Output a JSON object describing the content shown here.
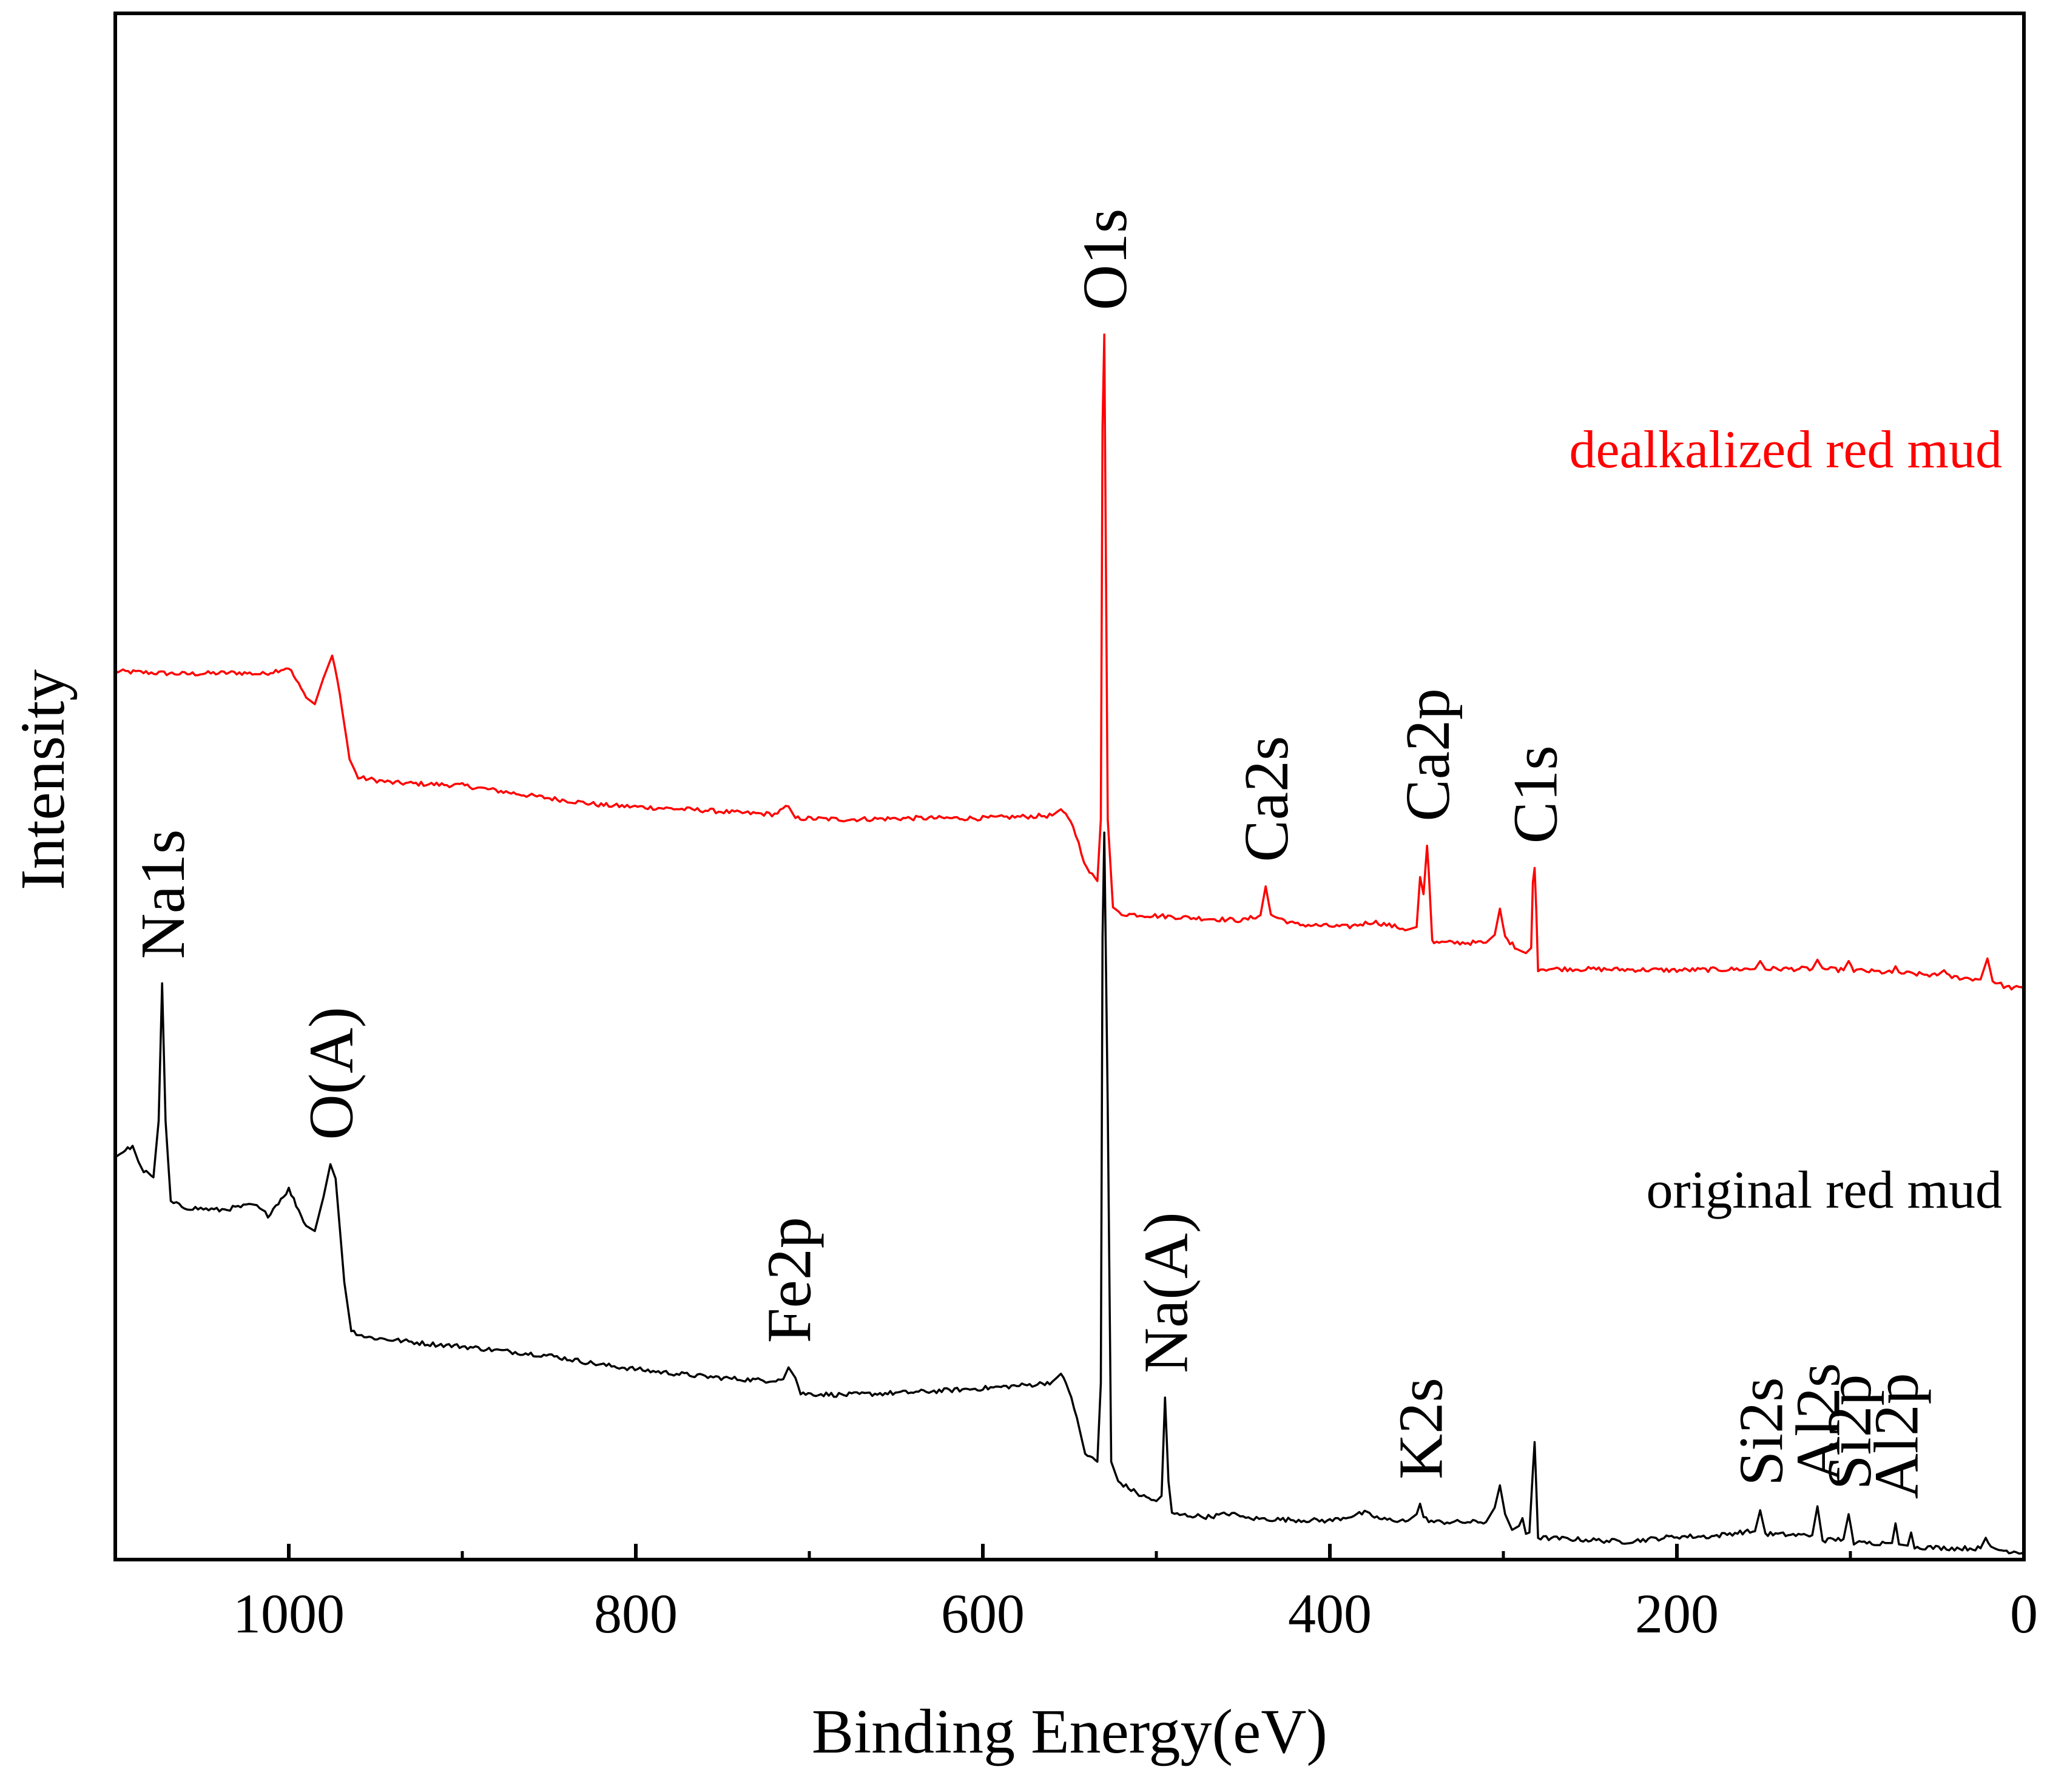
{
  "chart_data": {
    "type": "line",
    "title": "",
    "xlabel": "Binding Energy(eV)",
    "ylabel": "Intensity",
    "xlim": [
      1100,
      0
    ],
    "ylim": [
      0,
      1
    ],
    "x_ticks": [
      1000,
      800,
      600,
      400,
      200,
      0
    ],
    "x_tick_labels": [
      "1000",
      "800",
      "600",
      "400",
      "200",
      "0"
    ],
    "y_ticks_shown": false,
    "grid": false,
    "series": [
      {
        "name": "dealkalized red mud",
        "color": "#ff0000",
        "label_placement": "upper-right",
        "points": [
          [
            1100,
            0.673
          ],
          [
            1060,
            0.671
          ],
          [
            1030,
            0.672
          ],
          [
            1015,
            0.671
          ],
          [
            1000,
            0.676
          ],
          [
            990,
            0.653
          ],
          [
            985,
            0.648
          ],
          [
            980,
            0.668
          ],
          [
            975,
            0.685
          ],
          [
            972,
            0.668
          ],
          [
            965,
            0.606
          ],
          [
            960,
            0.592
          ],
          [
            940,
            0.588
          ],
          [
            900,
            0.586
          ],
          [
            860,
            0.578
          ],
          [
            820,
            0.571
          ],
          [
            790,
            0.569
          ],
          [
            760,
            0.567
          ],
          [
            740,
            0.565
          ],
          [
            720,
            0.564
          ],
          [
            712,
            0.57
          ],
          [
            708,
            0.561
          ],
          [
            680,
            0.56
          ],
          [
            640,
            0.561
          ],
          [
            600,
            0.561
          ],
          [
            580,
            0.562
          ],
          [
            560,
            0.563
          ],
          [
            555,
            0.568
          ],
          [
            548,
            0.555
          ],
          [
            540,
            0.522
          ],
          [
            534,
            0.513
          ],
          [
            532,
            0.56
          ],
          [
            531,
            0.86
          ],
          [
            530,
            0.93
          ],
          [
            528,
            0.56
          ],
          [
            525,
            0.493
          ],
          [
            520,
            0.488
          ],
          [
            480,
            0.485
          ],
          [
            450,
            0.483
          ],
          [
            440,
            0.487
          ],
          [
            437,
            0.509
          ],
          [
            434,
            0.487
          ],
          [
            420,
            0.48
          ],
          [
            390,
            0.478
          ],
          [
            375,
            0.482
          ],
          [
            355,
            0.476
          ],
          [
            350,
            0.478
          ],
          [
            348,
            0.516
          ],
          [
            346,
            0.503
          ],
          [
            344,
            0.54
          ],
          [
            343,
            0.52
          ],
          [
            341,
            0.468
          ],
          [
            340,
            0.466
          ],
          [
            310,
            0.466
          ],
          [
            305,
            0.472
          ],
          [
            302,
            0.492
          ],
          [
            299,
            0.47
          ],
          [
            292,
            0.461
          ],
          [
            287,
            0.458
          ],
          [
            284,
            0.462
          ],
          [
            283,
            0.512
          ],
          [
            282,
            0.523
          ],
          [
            281,
            0.49
          ],
          [
            280,
            0.446
          ],
          [
            260,
            0.446
          ],
          [
            200,
            0.445
          ],
          [
            155,
            0.446
          ],
          [
            152,
            0.452
          ],
          [
            149,
            0.446
          ],
          [
            122,
            0.446
          ],
          [
            119,
            0.453
          ],
          [
            116,
            0.446
          ],
          [
            104,
            0.445
          ],
          [
            101,
            0.452
          ],
          [
            98,
            0.445
          ],
          [
            76,
            0.443
          ],
          [
            74,
            0.448
          ],
          [
            72,
            0.443
          ],
          [
            50,
            0.441
          ],
          [
            46,
            0.445
          ],
          [
            43,
            0.44
          ],
          [
            25,
            0.438
          ],
          [
            21,
            0.454
          ],
          [
            18,
            0.437
          ],
          [
            10,
            0.432
          ],
          [
            0,
            0.431
          ]
        ]
      },
      {
        "name": "original red mud",
        "color": "#000000",
        "label_placement": "middle-right",
        "points": [
          [
            1100,
            0.303
          ],
          [
            1090,
            0.311
          ],
          [
            1085,
            0.293
          ],
          [
            1078,
            0.287
          ],
          [
            1075,
            0.33
          ],
          [
            1073,
            0.435
          ],
          [
            1071,
            0.33
          ],
          [
            1068,
            0.268
          ],
          [
            1060,
            0.264
          ],
          [
            1040,
            0.262
          ],
          [
            1020,
            0.266
          ],
          [
            1012,
            0.258
          ],
          [
            1000,
            0.278
          ],
          [
            990,
            0.25
          ],
          [
            985,
            0.246
          ],
          [
            980,
            0.272
          ],
          [
            976,
            0.297
          ],
          [
            973,
            0.286
          ],
          [
            968,
            0.207
          ],
          [
            964,
            0.17
          ],
          [
            955,
            0.165
          ],
          [
            940,
            0.163
          ],
          [
            920,
            0.16
          ],
          [
            900,
            0.158
          ],
          [
            880,
            0.155
          ],
          [
            850,
            0.151
          ],
          [
            820,
            0.144
          ],
          [
            790,
            0.139
          ],
          [
            760,
            0.135
          ],
          [
            740,
            0.133
          ],
          [
            725,
            0.132
          ],
          [
            715,
            0.133
          ],
          [
            712,
            0.142
          ],
          [
            708,
            0.134
          ],
          [
            705,
            0.122
          ],
          [
            680,
            0.121
          ],
          [
            640,
            0.123
          ],
          [
            600,
            0.126
          ],
          [
            570,
            0.129
          ],
          [
            560,
            0.131
          ],
          [
            555,
            0.137
          ],
          [
            549,
            0.12
          ],
          [
            541,
            0.076
          ],
          [
            534,
            0.07
          ],
          [
            532,
            0.13
          ],
          [
            531,
            0.47
          ],
          [
            530,
            0.55
          ],
          [
            528,
            0.34
          ],
          [
            526,
            0.07
          ],
          [
            522,
            0.055
          ],
          [
            510,
            0.045
          ],
          [
            500,
            0.04
          ],
          [
            497,
            0.044
          ],
          [
            495,
            0.119
          ],
          [
            493,
            0.055
          ],
          [
            491,
            0.03
          ],
          [
            470,
            0.028
          ],
          [
            455,
            0.031
          ],
          [
            450,
            0.027
          ],
          [
            430,
            0.026
          ],
          [
            400,
            0.025
          ],
          [
            380,
            0.031
          ],
          [
            370,
            0.026
          ],
          [
            355,
            0.025
          ],
          [
            350,
            0.03
          ],
          [
            348,
            0.038
          ],
          [
            346,
            0.027
          ],
          [
            340,
            0.024
          ],
          [
            310,
            0.024
          ],
          [
            305,
            0.035
          ],
          [
            302,
            0.052
          ],
          [
            299,
            0.03
          ],
          [
            295,
            0.018
          ],
          [
            291,
            0.021
          ],
          [
            289,
            0.027
          ],
          [
            287,
            0.015
          ],
          [
            285,
            0.016
          ],
          [
            283,
            0.063
          ],
          [
            282,
            0.085
          ],
          [
            281,
            0.05
          ],
          [
            280,
            0.012
          ],
          [
            260,
            0.011
          ],
          [
            230,
            0.009
          ],
          [
            200,
            0.013
          ],
          [
            180,
            0.013
          ],
          [
            165,
            0.016
          ],
          [
            155,
            0.017
          ],
          [
            152,
            0.033
          ],
          [
            149,
            0.015
          ],
          [
            130,
            0.014
          ],
          [
            122,
            0.014
          ],
          [
            119,
            0.036
          ],
          [
            116,
            0.01
          ],
          [
            104,
            0.011
          ],
          [
            101,
            0.03
          ],
          [
            98,
            0.008
          ],
          [
            80,
            0.008
          ],
          [
            76,
            0.008
          ],
          [
            74,
            0.023
          ],
          [
            72,
            0.007
          ],
          [
            67,
            0.006
          ],
          [
            65,
            0.016
          ],
          [
            63,
            0.005
          ],
          [
            40,
            0.004
          ],
          [
            25,
            0.004
          ],
          [
            22,
            0.012
          ],
          [
            19,
            0.004
          ],
          [
            10,
            0.002
          ],
          [
            0,
            0.001
          ]
        ]
      }
    ],
    "annotations": [
      {
        "text": "O1s",
        "series": "dealkalized red mud",
        "x": 530,
        "y": 0.93
      },
      {
        "text": "Ca2s",
        "series": "dealkalized red mud",
        "x": 437,
        "y": 0.509
      },
      {
        "text": "Ca2p",
        "series": "dealkalized red mud",
        "x": 344,
        "y": 0.54
      },
      {
        "text": "C1s",
        "series": "dealkalized red mud",
        "x": 282,
        "y": 0.523
      },
      {
        "text": "Na1s",
        "series": "original red mud",
        "x": 1073,
        "y": 0.435
      },
      {
        "text": "O(A)",
        "series": "original red mud",
        "x": 976,
        "y": 0.297
      },
      {
        "text": "Fe2p",
        "series": "original red mud",
        "x": 712,
        "y": 0.142
      },
      {
        "text": "Na(A)",
        "series": "original red mud",
        "x": 495,
        "y": 0.119
      },
      {
        "text": "K2s",
        "series": "original red mud",
        "x": 348,
        "y": 0.038
      },
      {
        "text": "Si2s",
        "series": "original red mud",
        "x": 152,
        "y": 0.033
      },
      {
        "text": "Al2s",
        "series": "original red mud",
        "x": 119,
        "y": 0.036
      },
      {
        "text": "Si2p",
        "series": "original red mud",
        "x": 101,
        "y": 0.03
      },
      {
        "text": "Al2p",
        "series": "original red mud",
        "x": 74,
        "y": 0.023
      }
    ]
  }
}
